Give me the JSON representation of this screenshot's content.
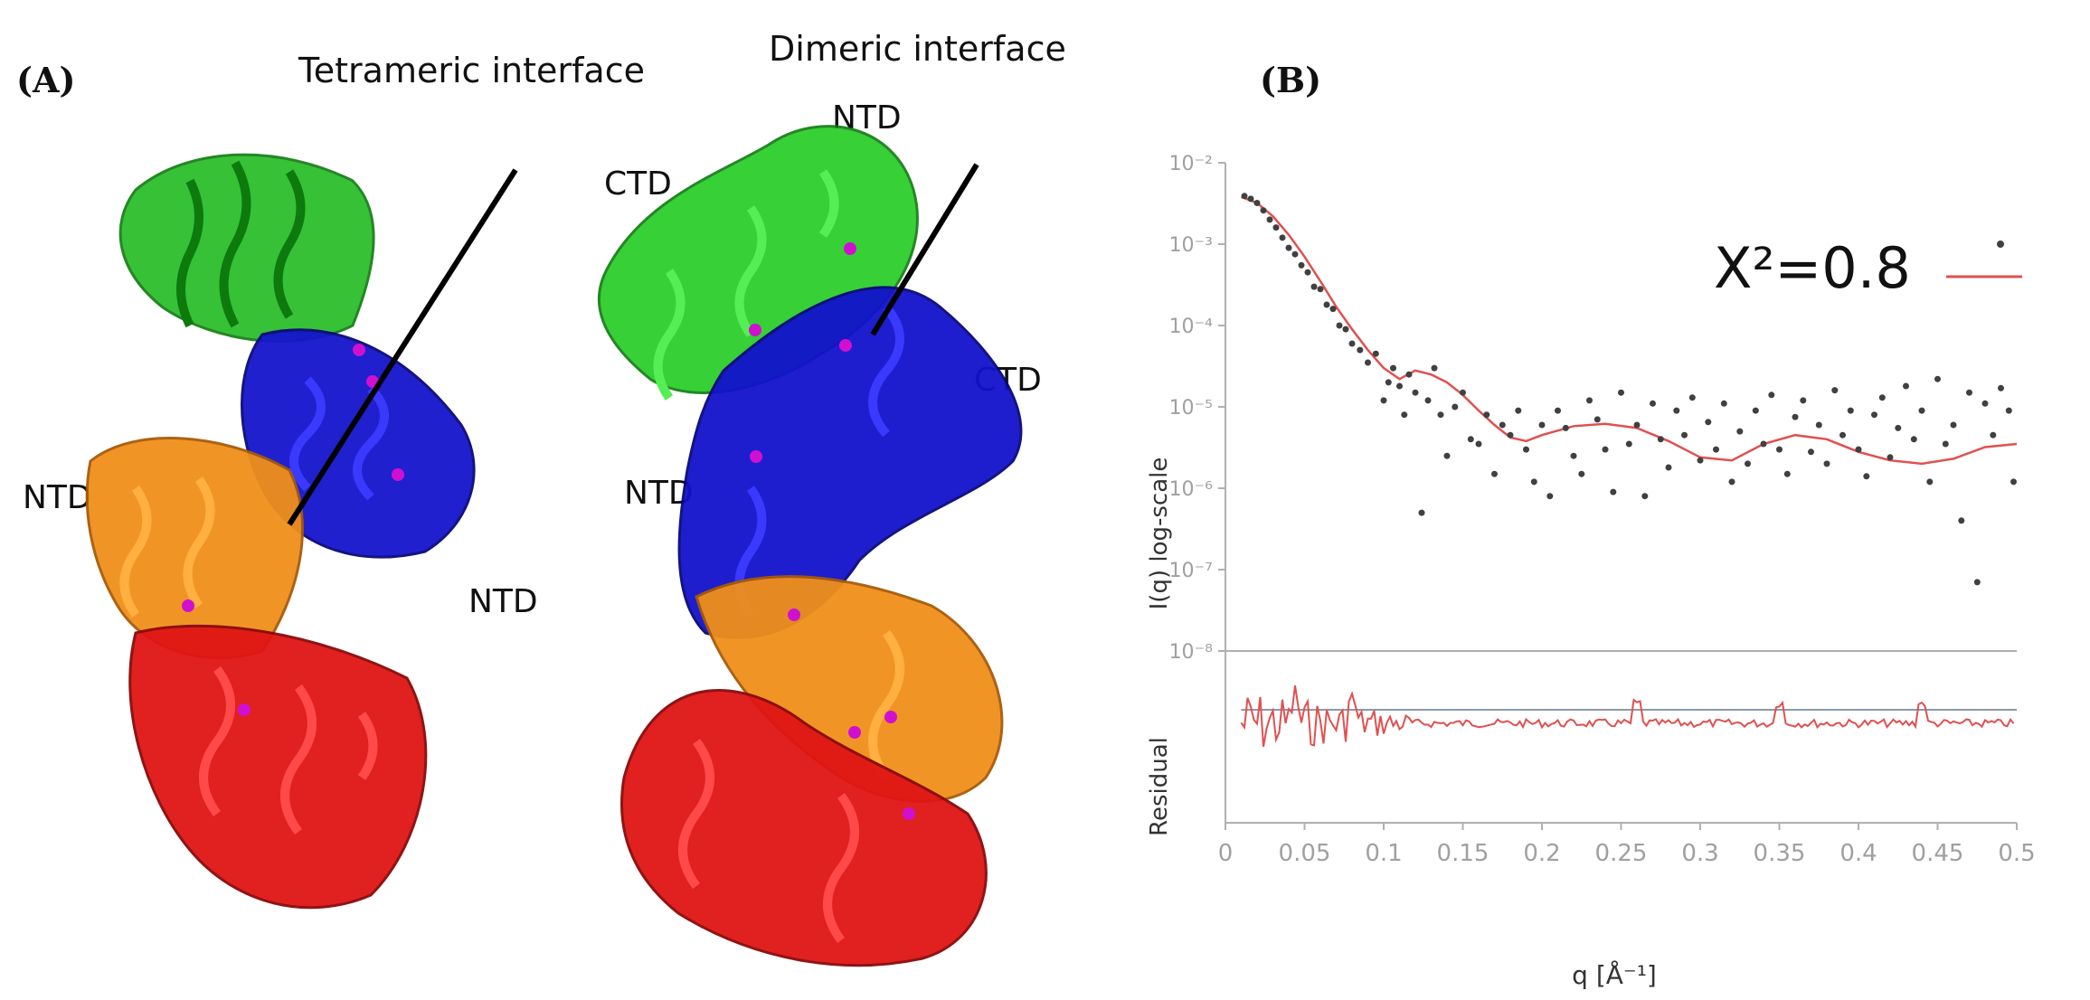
{
  "panel_a": {
    "letter": "(A)",
    "tetrameric_label": "Tetrameric interface",
    "dimeric_label": "Dimeric interface",
    "domain_labels": {
      "left_ntd_left": "NTD",
      "left_ntd_right": "NTD",
      "right_ntd_top": "NTD",
      "right_ctd_left": "CTD",
      "right_ctd_right": "CTD",
      "right_ntd_mid": "NTD"
    },
    "chain_colors": {
      "green": "#22cc22",
      "blue": "#1010d0",
      "orange": "#f0901a",
      "red": "#e01010",
      "ion": "#d010d0"
    }
  },
  "panel_b": {
    "letter": "(B)"
  },
  "chart_data": {
    "type": "scatter",
    "log_y": true,
    "xlabel": "q [Å⁻¹]",
    "ylabel": "I(q) log-scale",
    "residual_label": "Residual",
    "xlim": [
      0,
      0.5
    ],
    "ylim": [
      1e-08,
      0.01
    ],
    "x_ticks": [
      "0",
      "0.05",
      "0.1",
      "0.15",
      "0.2",
      "0.25",
      "0.3",
      "0.35",
      "0.4",
      "0.45",
      "0.5"
    ],
    "y_ticks": [
      "10⁻⁸",
      "10⁻⁷",
      "10⁻⁶",
      "10⁻⁵",
      "10⁻⁴",
      "10⁻³",
      "10⁻²"
    ],
    "legend_text": "X²=0.8",
    "legend_placement": "top-right",
    "colors": {
      "points": "#404040",
      "fit": "#e05050",
      "axis": "#b0b0b0",
      "ticktext": "#a0a0a0"
    },
    "fit_curve": {
      "name": "fit",
      "x": [
        0.01,
        0.02,
        0.03,
        0.04,
        0.05,
        0.06,
        0.07,
        0.08,
        0.09,
        0.1,
        0.11,
        0.12,
        0.13,
        0.14,
        0.15,
        0.16,
        0.17,
        0.18,
        0.19,
        0.2,
        0.22,
        0.24,
        0.26,
        0.28,
        0.3,
        0.32,
        0.34,
        0.36,
        0.38,
        0.4,
        0.42,
        0.44,
        0.46,
        0.48,
        0.5
      ],
      "y": [
        0.0038,
        0.0032,
        0.0022,
        0.0013,
        0.0007,
        0.00035,
        0.00017,
        9e-05,
        5e-05,
        3e-05,
        2.2e-05,
        2.8e-05,
        2.5e-05,
        2e-05,
        1.4e-05,
        9e-06,
        6e-06,
        4.2e-06,
        3.8e-06,
        4.5e-06,
        5.8e-06,
        6.2e-06,
        5.5e-06,
        3.8e-06,
        2.4e-06,
        2.2e-06,
        3.5e-06,
        4.5e-06,
        4e-06,
        2.8e-06,
        2.2e-06,
        2e-06,
        2.3e-06,
        3.2e-06,
        3.5e-06
      ]
    },
    "data_points": {
      "name": "data",
      "x": [
        0.012,
        0.016,
        0.02,
        0.024,
        0.028,
        0.032,
        0.036,
        0.04,
        0.044,
        0.048,
        0.052,
        0.056,
        0.06,
        0.064,
        0.068,
        0.072,
        0.076,
        0.08,
        0.085,
        0.09,
        0.095,
        0.1,
        0.103,
        0.106,
        0.11,
        0.113,
        0.116,
        0.12,
        0.124,
        0.128,
        0.132,
        0.136,
        0.14,
        0.145,
        0.15,
        0.155,
        0.16,
        0.165,
        0.17,
        0.175,
        0.18,
        0.185,
        0.19,
        0.195,
        0.2,
        0.205,
        0.21,
        0.215,
        0.22,
        0.225,
        0.23,
        0.235,
        0.24,
        0.245,
        0.25,
        0.255,
        0.26,
        0.265,
        0.27,
        0.275,
        0.28,
        0.285,
        0.29,
        0.295,
        0.3,
        0.305,
        0.31,
        0.315,
        0.32,
        0.325,
        0.33,
        0.335,
        0.34,
        0.345,
        0.35,
        0.355,
        0.36,
        0.365,
        0.37,
        0.375,
        0.38,
        0.385,
        0.39,
        0.395,
        0.4,
        0.405,
        0.41,
        0.415,
        0.42,
        0.425,
        0.43,
        0.435,
        0.44,
        0.445,
        0.45,
        0.455,
        0.46,
        0.465,
        0.47,
        0.475,
        0.48,
        0.485,
        0.49,
        0.495,
        0.498
      ],
      "y": [
        0.0039,
        0.0036,
        0.0032,
        0.0026,
        0.002,
        0.0016,
        0.0012,
        0.0009,
        0.00075,
        0.00055,
        0.00045,
        0.0003,
        0.00028,
        0.00018,
        0.00016,
        0.0001,
        9e-05,
        6e-05,
        5e-05,
        3.5e-05,
        4.5e-05,
        1.2e-05,
        2e-05,
        3e-05,
        1.8e-05,
        8e-06,
        2.5e-05,
        1.5e-05,
        5e-07,
        1.2e-05,
        3e-05,
        8e-06,
        2.5e-06,
        1e-05,
        1.5e-05,
        4e-06,
        3.5e-06,
        8e-06,
        1.5e-06,
        6e-06,
        4.5e-06,
        9e-06,
        3e-06,
        1.2e-06,
        6e-06,
        8e-07,
        9e-06,
        5.5e-06,
        2.5e-06,
        1.5e-06,
        1.2e-05,
        7e-06,
        3e-06,
        9e-07,
        1.5e-05,
        3.5e-06,
        6e-06,
        8e-07,
        1.1e-05,
        4e-06,
        1.8e-06,
        9e-06,
        4.5e-06,
        1.3e-05,
        2.2e-06,
        6.5e-06,
        3e-06,
        1.1e-05,
        1.2e-06,
        5e-06,
        2e-06,
        9e-06,
        3.5e-06,
        1.4e-05,
        3e-06,
        1.5e-06,
        7.5e-06,
        1.2e-05,
        2.8e-06,
        6e-06,
        2e-06,
        1.6e-05,
        4.5e-06,
        9e-06,
        3e-06,
        1.4e-06,
        8e-06,
        1.3e-05,
        2.4e-06,
        5.5e-06,
        1.8e-05,
        4e-06,
        9e-06,
        1.2e-06,
        2.2e-05,
        3.5e-06,
        6e-06,
        4e-07,
        1.5e-05,
        7e-08,
        1.1e-05,
        4.5e-06,
        1.7e-05,
        9e-06,
        1.2e-06
      ]
    },
    "residual_bumps": [
      0.045,
      0.08,
      0.26,
      0.35,
      0.44
    ]
  }
}
